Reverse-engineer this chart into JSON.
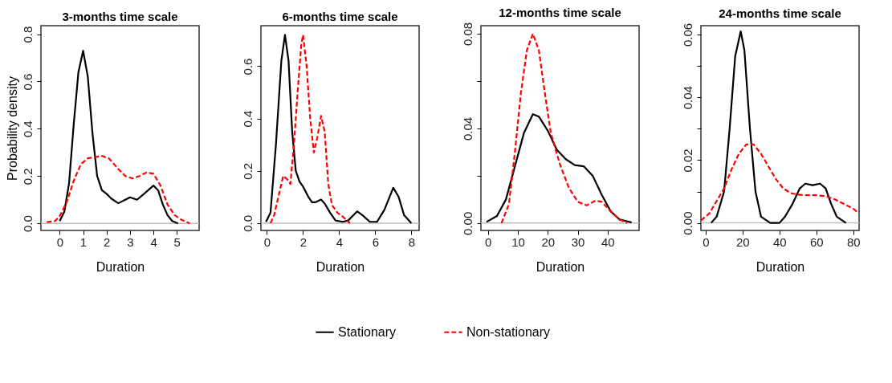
{
  "chart_data": [
    {
      "type": "line",
      "title": "3-months time scale",
      "xlabel": "Duration",
      "ylabel": "Probability density",
      "xlim": [
        -0.8,
        5.95
      ],
      "ylim": [
        -0.03,
        0.836
      ],
      "xticks": [
        0,
        1,
        2,
        3,
        4,
        5
      ],
      "yticks": [
        {
          "value": 0,
          "label": "0.0"
        },
        0.2,
        0.4,
        0.6,
        0.8
      ],
      "grid": false,
      "legend": "bottom",
      "ref_lines": [
        {
          "axis": "y",
          "value": 0,
          "color": "#bebebe"
        }
      ],
      "series": [
        {
          "name": "Stationary",
          "color": "#000000",
          "line_style": "solid",
          "x": [
            0,
            0.2,
            0.4,
            0.6,
            0.8,
            1.0,
            1.2,
            1.4,
            1.6,
            1.8,
            2.0,
            2.2,
            2.5,
            2.8,
            3.0,
            3.3,
            3.6,
            4.0,
            4.2,
            4.4,
            4.6,
            4.8,
            5.05
          ],
          "values": [
            0.01,
            0.05,
            0.17,
            0.42,
            0.64,
            0.73,
            0.62,
            0.38,
            0.2,
            0.14,
            0.125,
            0.105,
            0.085,
            0.1,
            0.11,
            0.1,
            0.125,
            0.16,
            0.14,
            0.08,
            0.035,
            0.01,
            0.0
          ]
        },
        {
          "name": "Non-stationary",
          "color": "#ff0000",
          "line_style": "dashed",
          "x": [
            -0.55,
            -0.2,
            0,
            0.3,
            0.6,
            0.9,
            1.2,
            1.5,
            1.8,
            2.1,
            2.5,
            2.8,
            3.1,
            3.4,
            3.7,
            4.0,
            4.3,
            4.6,
            4.9,
            5.2,
            5.55
          ],
          "values": [
            0.005,
            0.01,
            0.03,
            0.09,
            0.18,
            0.25,
            0.275,
            0.28,
            0.285,
            0.275,
            0.23,
            0.2,
            0.19,
            0.2,
            0.215,
            0.21,
            0.16,
            0.08,
            0.035,
            0.015,
            0.0
          ]
        }
      ]
    },
    {
      "type": "line",
      "title": "6-months time scale",
      "xlabel": "Duration",
      "xlim": [
        -0.33,
        8.43
      ],
      "ylim": [
        -0.028,
        0.755
      ],
      "xticks": [
        0,
        2,
        4,
        6,
        8
      ],
      "yticks": [
        {
          "value": 0,
          "label": "0.0"
        },
        0.2,
        0.4,
        0.6
      ],
      "grid": false,
      "legend": "bottom",
      "ref_lines": [
        {
          "axis": "y",
          "value": 0,
          "color": "#bebebe"
        }
      ],
      "series": [
        {
          "name": "Stationary",
          "color": "#000000",
          "line_style": "solid",
          "x": [
            -0.05,
            0.2,
            0.5,
            0.8,
            1.0,
            1.2,
            1.4,
            1.6,
            1.8,
            2.0,
            2.3,
            2.5,
            2.7,
            3.0,
            3.2,
            3.5,
            3.8,
            4.2,
            4.5,
            5.0,
            5.3,
            5.7,
            6.1,
            6.5,
            7.0,
            7.3,
            7.6,
            8.0
          ],
          "values": [
            0.005,
            0.04,
            0.3,
            0.62,
            0.72,
            0.62,
            0.35,
            0.2,
            0.16,
            0.14,
            0.1,
            0.08,
            0.08,
            0.09,
            0.075,
            0.04,
            0.01,
            0.005,
            0.01,
            0.045,
            0.03,
            0.005,
            0.005,
            0.05,
            0.135,
            0.1,
            0.03,
            0.0
          ]
        },
        {
          "name": "Non-stationary",
          "color": "#ff0000",
          "line_style": "dashed",
          "x": [
            0.2,
            0.4,
            0.7,
            0.9,
            1.1,
            1.3,
            1.5,
            1.7,
            1.9,
            2.0,
            2.2,
            2.4,
            2.6,
            2.8,
            3.0,
            3.2,
            3.4,
            3.6,
            3.9,
            4.2,
            4.6
          ],
          "values": [
            0.0,
            0.03,
            0.12,
            0.18,
            0.17,
            0.15,
            0.3,
            0.5,
            0.68,
            0.72,
            0.6,
            0.4,
            0.27,
            0.33,
            0.41,
            0.35,
            0.15,
            0.07,
            0.04,
            0.025,
            0.0
          ]
        }
      ]
    },
    {
      "type": "line",
      "title": "12-months time scale",
      "xlabel": "Duration",
      "xlim": [
        -2.36,
        50.5
      ],
      "ylim": [
        -0.0031,
        0.0834
      ],
      "xticks": [
        0,
        10,
        20,
        30,
        40
      ],
      "yticks": [
        {
          "value": 0,
          "label": "0.00"
        },
        {
          "value": 0.02,
          "label": null
        },
        0.04,
        {
          "value": 0.06,
          "label": null
        },
        0.08
      ],
      "grid": false,
      "legend": "bottom",
      "ref_lines": [
        {
          "axis": "y",
          "value": 0,
          "color": "#bebebe"
        }
      ],
      "series": [
        {
          "name": "Stationary",
          "color": "#000000",
          "line_style": "solid",
          "x": [
            -0.5,
            3,
            6,
            9,
            12,
            15,
            17,
            20,
            23,
            26,
            29,
            32,
            35,
            38,
            41,
            44,
            48
          ],
          "values": [
            0.0005,
            0.003,
            0.01,
            0.024,
            0.038,
            0.046,
            0.045,
            0.039,
            0.031,
            0.027,
            0.0245,
            0.024,
            0.02,
            0.012,
            0.005,
            0.0015,
            0.0003
          ]
        },
        {
          "name": "Non-stationary",
          "color": "#ff0000",
          "line_style": "dashed",
          "x": [
            4.5,
            7,
            9,
            11,
            13,
            15,
            17,
            19,
            21,
            24,
            27,
            30,
            33,
            36,
            38,
            41,
            44,
            46.5
          ],
          "values": [
            0.0,
            0.008,
            0.03,
            0.055,
            0.073,
            0.08,
            0.073,
            0.055,
            0.038,
            0.025,
            0.015,
            0.009,
            0.0075,
            0.0095,
            0.009,
            0.005,
            0.0015,
            0.0
          ]
        }
      ]
    },
    {
      "type": "line",
      "title": "24-months time scale",
      "xlabel": "Duration",
      "xlim": [
        -2.55,
        83.1
      ],
      "ylim": [
        -0.0024,
        0.0628
      ],
      "xticks": [
        0,
        20,
        40,
        60,
        80
      ],
      "yticks": [
        {
          "value": 0,
          "label": "0.00"
        },
        {
          "value": 0.01,
          "label": null
        },
        0.02,
        {
          "value": 0.03,
          "label": null
        },
        0.04,
        {
          "value": 0.05,
          "label": null
        },
        0.06
      ],
      "grid": false,
      "legend": "bottom",
      "ref_lines": [
        {
          "axis": "y",
          "value": 0,
          "color": "#bebebe"
        }
      ],
      "series": [
        {
          "name": "Stationary",
          "color": "#000000",
          "line_style": "solid",
          "x": [
            3,
            6,
            10,
            13,
            16,
            19,
            21,
            24,
            27,
            30,
            35,
            40,
            43,
            47,
            51,
            54,
            58,
            62,
            65,
            68,
            71,
            76
          ],
          "values": [
            0.0,
            0.002,
            0.01,
            0.03,
            0.053,
            0.061,
            0.055,
            0.03,
            0.01,
            0.002,
            0.0,
            0.0,
            0.002,
            0.006,
            0.011,
            0.0125,
            0.012,
            0.0125,
            0.011,
            0.006,
            0.002,
            0.0
          ]
        },
        {
          "name": "Non-stationary",
          "color": "#ff0000",
          "line_style": "dashed",
          "x": [
            -2.5,
            2,
            6,
            10,
            14,
            18,
            22,
            26,
            30,
            34,
            38,
            42,
            46,
            50,
            55,
            60,
            65,
            70,
            75,
            80,
            83.1
          ],
          "values": [
            0.0008,
            0.003,
            0.007,
            0.011,
            0.017,
            0.022,
            0.025,
            0.025,
            0.022,
            0.018,
            0.014,
            0.011,
            0.0095,
            0.009,
            0.0088,
            0.0088,
            0.0085,
            0.0075,
            0.006,
            0.0045,
            0.003
          ]
        }
      ]
    }
  ]
}
